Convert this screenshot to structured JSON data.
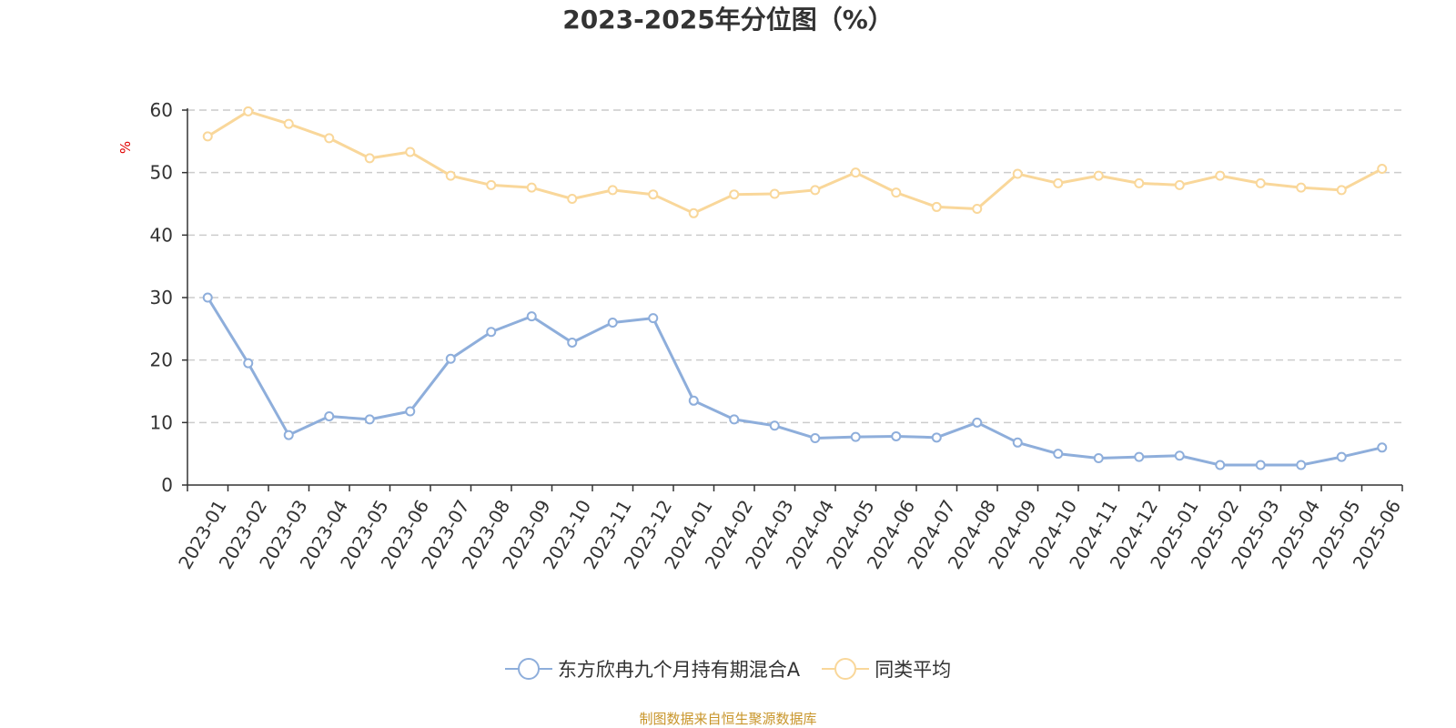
{
  "chart_data": {
    "type": "line",
    "title": "2023-2025年分位图（%）",
    "ylabel": "%",
    "ylim": [
      0,
      60
    ],
    "yticks": [
      "0",
      "10",
      "20",
      "30",
      "40",
      "50",
      "60"
    ],
    "grid": true,
    "legend_position": "bottom",
    "categories": [
      "2023-01",
      "2023-02",
      "2023-03",
      "2023-04",
      "2023-05",
      "2023-06",
      "2023-07",
      "2023-08",
      "2023-09",
      "2023-10",
      "2023-11",
      "2023-12",
      "2024-01",
      "2024-02",
      "2024-03",
      "2024-04",
      "2024-05",
      "2024-06",
      "2024-07",
      "2024-08",
      "2024-09",
      "2024-10",
      "2024-11",
      "2024-12",
      "2025-01",
      "2025-02",
      "2025-03",
      "2025-04",
      "2025-05",
      "2025-06"
    ],
    "series": [
      {
        "name": "东方欣冉九个月持有期混合A",
        "color": "#8eaedb",
        "values": [
          30.0,
          19.5,
          8.0,
          11.0,
          10.5,
          11.8,
          20.2,
          24.5,
          27.0,
          22.8,
          26.0,
          26.7,
          13.5,
          10.5,
          9.5,
          7.5,
          7.7,
          7.8,
          7.6,
          10.0,
          6.8,
          5.0,
          4.3,
          4.5,
          4.7,
          3.2,
          3.2,
          3.2,
          4.5,
          6.0
        ]
      },
      {
        "name": "同类平均",
        "color": "#f9d79a",
        "values": [
          55.8,
          59.8,
          57.8,
          55.5,
          52.3,
          53.3,
          49.5,
          48.0,
          47.6,
          45.8,
          47.2,
          46.5,
          43.5,
          46.5,
          46.6,
          47.2,
          50.0,
          46.8,
          44.5,
          44.2,
          49.8,
          48.3,
          49.5,
          48.3,
          48.0,
          49.5,
          48.3,
          47.6,
          47.2,
          50.6
        ]
      }
    ]
  },
  "source_note": "制图数据来自恒生聚源数据库"
}
